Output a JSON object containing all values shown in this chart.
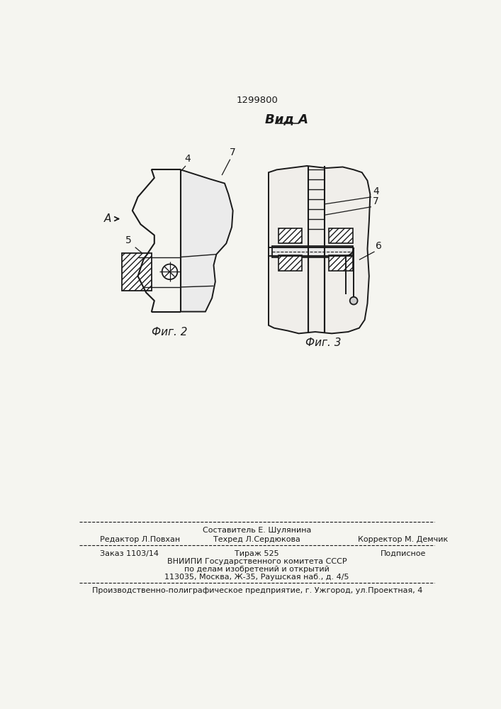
{
  "title_number": "1299800",
  "view_label": "Вид А",
  "fig2_label": "Фиг. 2",
  "fig3_label": "Фиг. 3",
  "footer_line0": "Составитель Е. Шулянина",
  "footer_editor": "Редактор Л.Повхан",
  "footer_tech": "Техред Л.Сердюкова",
  "footer_corrector": "Корректор М. Демчик",
  "footer_order": "Заказ 1103/14",
  "footer_tirazh": "Тираж 525",
  "footer_podpis": "Подписное",
  "footer_vniipи": "ВНИИПИ Государственного комитета СССР",
  "footer_po_delam": "по делам изобретений и открытий",
  "footer_address": "113035, Москва, Ж-35, Раушская наб., д. 4/5",
  "footer_factory": "Производственно-полиграфическое предприятие, г. Ужгород, ул.Проектная, 4",
  "bg_color": "#f5f5f0",
  "lc": "#1a1a1a"
}
